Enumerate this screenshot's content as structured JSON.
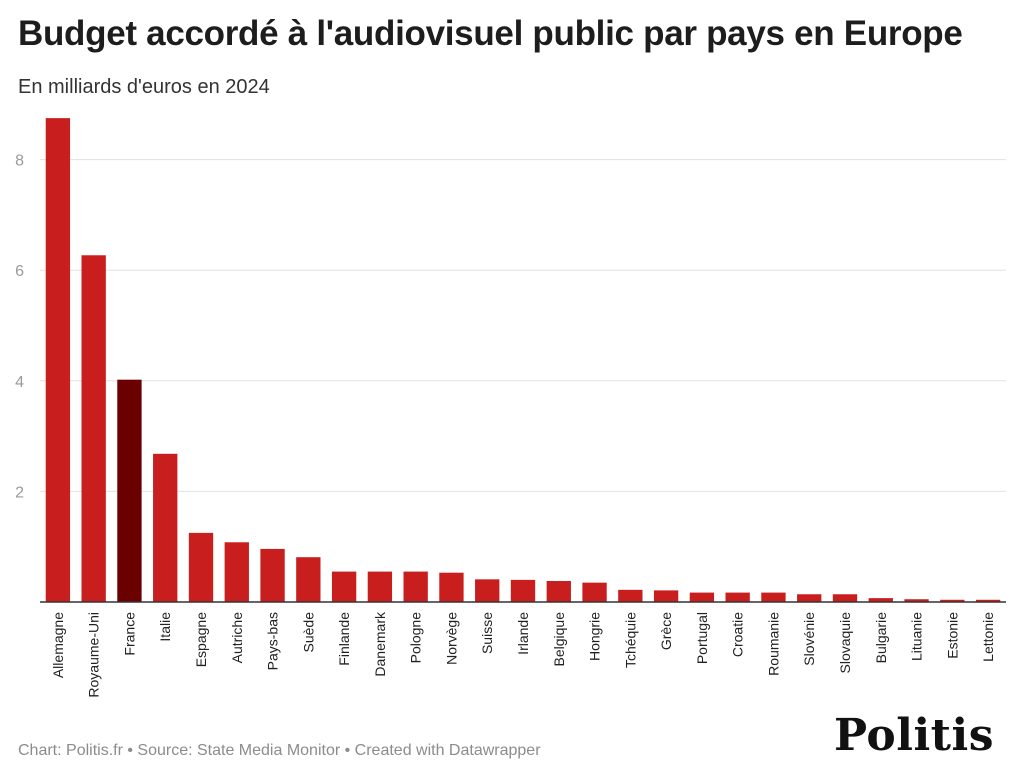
{
  "title": "Budget accordé à l'audiovisuel public par pays en Europe",
  "subtitle": "En milliards d'euros en 2024",
  "footer": "Chart: Politis.fr • Source: State Media Monitor • Created with Datawrapper",
  "logo": "Politis",
  "colors": {
    "bar": "#c81e1e",
    "highlight": "#6b0000",
    "grid": "#e2e2e2",
    "axis": "#333333",
    "tick": "#9a9a9a"
  },
  "chart_data": {
    "type": "bar",
    "title": "Budget accordé à l'audiovisuel public par pays en Europe",
    "subtitle": "En milliards d'euros en 2024",
    "xlabel": "",
    "ylabel": "",
    "ylim": [
      0,
      8.8
    ],
    "yticks": [
      2,
      4,
      6,
      8
    ],
    "grid": true,
    "highlight": "France",
    "categories": [
      "Allemagne",
      "Royaume-Uni",
      "France",
      "Italie",
      "Espagne",
      "Autriche",
      "Pays-bas",
      "Suède",
      "Finlande",
      "Danemark",
      "Pologne",
      "Norvège",
      "Suisse",
      "Irlande",
      "Belgique",
      "Hongrie",
      "Tchéquie",
      "Grèce",
      "Portugal",
      "Croatie",
      "Roumanie",
      "Slovénie",
      "Slovaquie",
      "Bulgarie",
      "Lituanie",
      "Estonie",
      "Lettonie"
    ],
    "values": [
      8.75,
      6.27,
      4.02,
      2.68,
      1.25,
      1.08,
      0.96,
      0.81,
      0.55,
      0.55,
      0.55,
      0.53,
      0.41,
      0.4,
      0.38,
      0.35,
      0.22,
      0.21,
      0.17,
      0.17,
      0.17,
      0.14,
      0.14,
      0.07,
      0.05,
      0.04,
      0.04
    ]
  }
}
